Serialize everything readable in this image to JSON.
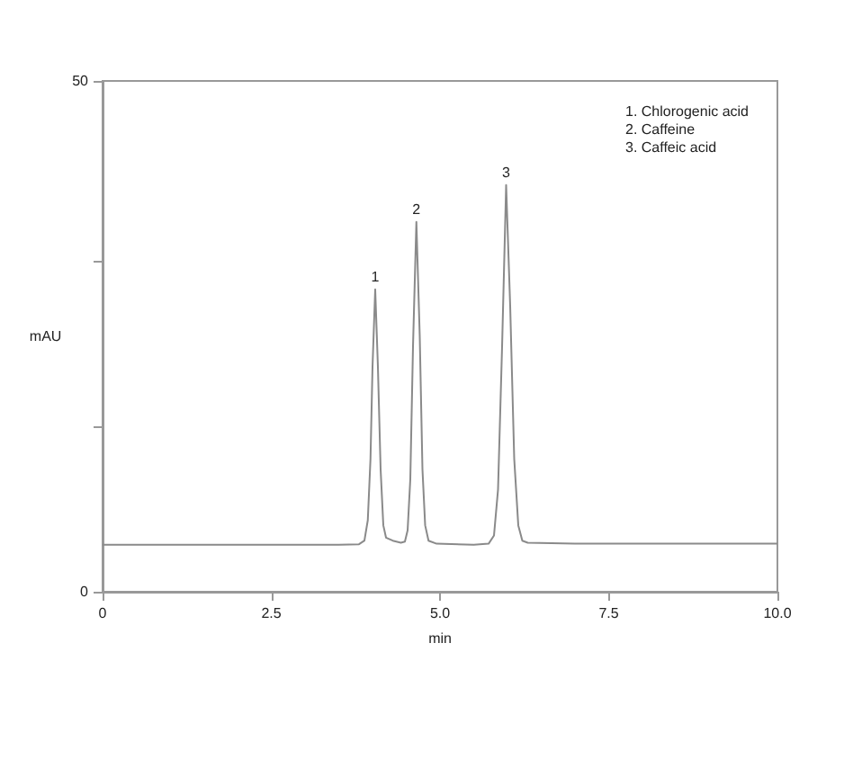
{
  "chart_data": {
    "type": "line",
    "xlabel": "min",
    "ylabel": "mAU",
    "xlim": [
      0,
      10
    ],
    "xticks": [
      0,
      2.5,
      {
        "value": 5,
        "label": "5.0"
      },
      7.5,
      {
        "value": 10,
        "label": "10.0"
      }
    ],
    "ylim": [
      0,
      50
    ],
    "yticks": [
      0,
      {
        "value": 16.2,
        "label": null
      },
      {
        "value": 32.3,
        "label": null
      },
      50
    ],
    "series": [
      {
        "color": "#8a8a8a",
        "x": [
          0,
          3.5,
          3.8,
          3.88,
          3.93,
          3.97,
          4.0,
          4.04,
          4.08,
          4.12,
          4.16,
          4.2,
          4.3,
          4.42,
          4.48,
          4.52,
          4.56,
          4.6,
          4.65,
          4.7,
          4.74,
          4.78,
          4.83,
          4.95,
          5.5,
          5.72,
          5.8,
          5.86,
          5.92,
          5.98,
          6.04,
          6.1,
          6.16,
          6.22,
          6.3,
          7,
          10
        ],
        "values": [
          4.6,
          4.6,
          4.65,
          5.0,
          7,
          13,
          22,
          29.6,
          22,
          12,
          6.5,
          5.3,
          5.0,
          4.8,
          4.9,
          6,
          11,
          24,
          36.2,
          25,
          12,
          6.5,
          5.0,
          4.7,
          4.6,
          4.7,
          5.5,
          10,
          24,
          39.8,
          28,
          13,
          6.5,
          5.0,
          4.8,
          4.7,
          4.7
        ]
      }
    ],
    "annotations": [
      "1. Chlorogenic acid",
      "2. Caffeine",
      "3. Caffeic acid",
      {
        "text": "1",
        "x": 4.04,
        "y": 29.6
      },
      {
        "text": "2",
        "x": 4.65,
        "y": 36.2
      },
      {
        "text": "3",
        "x": 5.98,
        "y": 39.8
      }
    ]
  }
}
